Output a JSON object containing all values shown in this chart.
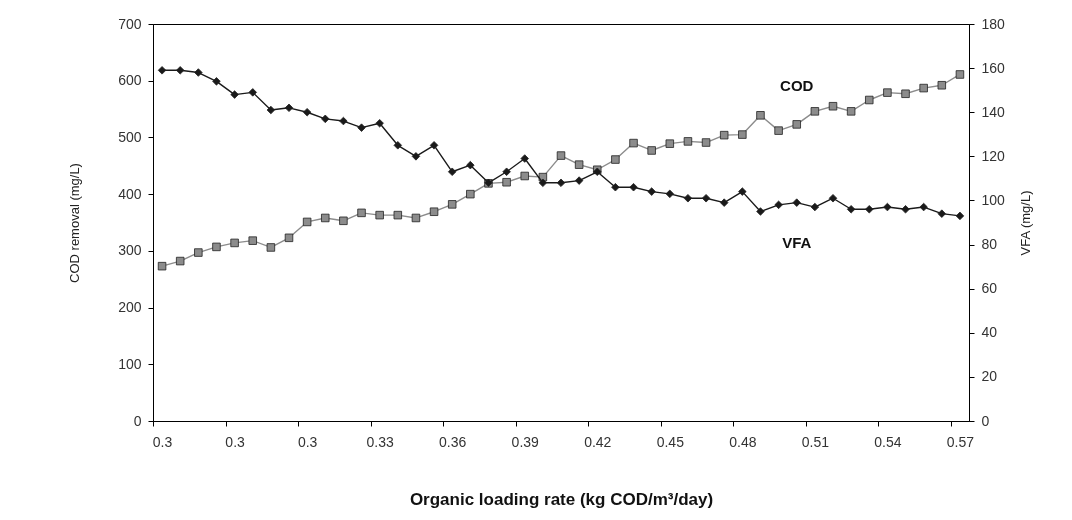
{
  "chart_data": {
    "type": "line",
    "xlabel": "Organic loading rate (kg COD/m³/day)",
    "ylabel": "COD removal (mg/L)",
    "y2label": "VFA (mg/L)",
    "categories": [
      "0.3",
      null,
      null,
      null,
      "0.3",
      null,
      null,
      null,
      "0.3",
      null,
      null,
      null,
      "0.33",
      null,
      null,
      null,
      "0.36",
      null,
      null,
      null,
      "0.39",
      null,
      null,
      null,
      "0.42",
      null,
      null,
      null,
      "0.45",
      null,
      null,
      null,
      "0.48",
      null,
      null,
      null,
      "0.51",
      null,
      null,
      null,
      "0.54",
      null,
      null,
      null,
      "0.57"
    ],
    "ylim": [
      0,
      700
    ],
    "yticks": [
      0,
      100,
      200,
      300,
      400,
      500,
      600,
      700
    ],
    "y2lim": [
      0,
      180
    ],
    "y2ticks": [
      0,
      20,
      40,
      60,
      80,
      100,
      120,
      140,
      160,
      180
    ],
    "series": [
      {
        "name": "COD",
        "color": "#8c8c8c",
        "marker": "square",
        "values": [
          273,
          282,
          297,
          307,
          314,
          318,
          306,
          323,
          351,
          358,
          353,
          367,
          363,
          363,
          358,
          369,
          382,
          400,
          419,
          421,
          432,
          430,
          468,
          452,
          443,
          461,
          490,
          477,
          489,
          493,
          491,
          504,
          505,
          539,
          512,
          523,
          546,
          555,
          546,
          566,
          579,
          577,
          587,
          592,
          611
        ]
      },
      {
        "name": "VFA",
        "color": "#1a1a1a",
        "marker": "diamond",
        "axis": "y2",
        "values": [
          159,
          159,
          158,
          154,
          148,
          149,
          141,
          142,
          140,
          137,
          136,
          133,
          135,
          125,
          120,
          125,
          113,
          116,
          108,
          113,
          119,
          108,
          108,
          109,
          113,
          106,
          106,
          104,
          103,
          101,
          101,
          99,
          104,
          95,
          98,
          99,
          97,
          101,
          96,
          96,
          97,
          96,
          97,
          94,
          93
        ]
      }
    ]
  }
}
